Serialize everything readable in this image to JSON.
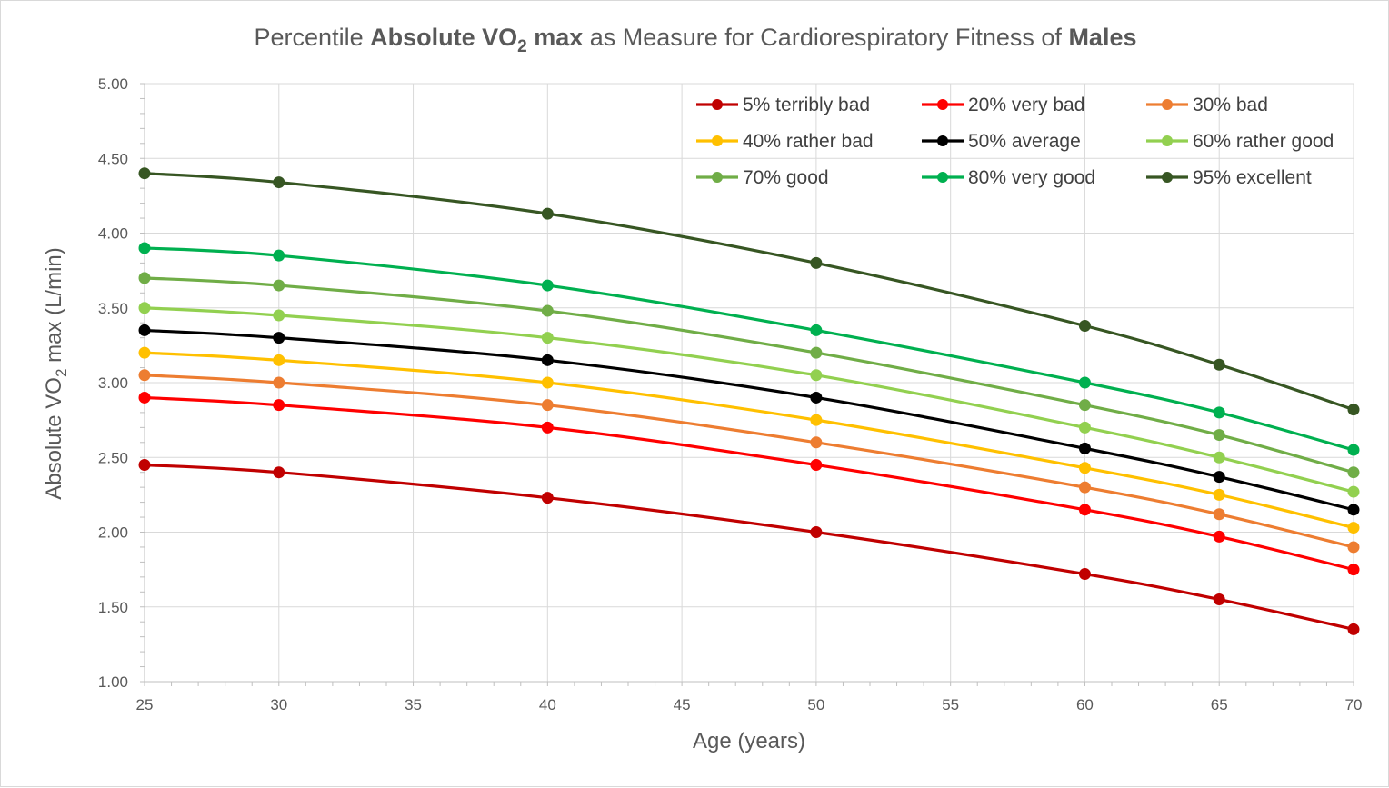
{
  "chart_data": {
    "type": "line",
    "title": {
      "parts": [
        {
          "text": "Percentile ",
          "bold": false,
          "sub": false
        },
        {
          "text": "Absolute VO",
          "bold": true,
          "sub": false
        },
        {
          "text": "2",
          "bold": true,
          "sub": true
        },
        {
          "text": " max",
          "bold": true,
          "sub": false
        },
        {
          "text": " as Measure for Cardiorespiratory Fitness of ",
          "bold": false,
          "sub": false
        },
        {
          "text": "Males",
          "bold": true,
          "sub": false
        }
      ]
    },
    "xlabel": "Age (years)",
    "ylabel": {
      "parts": [
        {
          "text": "Absolute VO",
          "sub": false
        },
        {
          "text": "2",
          "sub": true
        },
        {
          "text": " max (L/min)",
          "sub": false
        }
      ]
    },
    "xlim": [
      25,
      70
    ],
    "ylim": [
      1.0,
      5.0
    ],
    "x_ticks": [
      25,
      30,
      35,
      40,
      45,
      50,
      55,
      60,
      65,
      70
    ],
    "y_ticks": [
      "1.00",
      "1.50",
      "2.00",
      "2.50",
      "3.00",
      "3.50",
      "4.00",
      "4.50",
      "5.00"
    ],
    "grid": true,
    "legend_position": "top-right",
    "x": [
      25,
      30,
      40,
      50,
      60,
      65,
      70
    ],
    "series": [
      {
        "name": "5% terribly bad",
        "color": "#c00000",
        "values": [
          2.45,
          2.4,
          2.23,
          2.0,
          1.72,
          1.55,
          1.35
        ]
      },
      {
        "name": "20% very bad",
        "color": "#ff0000",
        "values": [
          2.9,
          2.85,
          2.7,
          2.45,
          2.15,
          1.97,
          1.75
        ]
      },
      {
        "name": "30% bad",
        "color": "#ed7d31",
        "values": [
          3.05,
          3.0,
          2.85,
          2.6,
          2.3,
          2.12,
          1.9
        ]
      },
      {
        "name": "40% rather bad",
        "color": "#ffc000",
        "values": [
          3.2,
          3.15,
          3.0,
          2.75,
          2.43,
          2.25,
          2.03
        ]
      },
      {
        "name": "50% average",
        "color": "#000000",
        "values": [
          3.35,
          3.3,
          3.15,
          2.9,
          2.56,
          2.37,
          2.15
        ]
      },
      {
        "name": "60% rather good",
        "color": "#92d050",
        "values": [
          3.5,
          3.45,
          3.3,
          3.05,
          2.7,
          2.5,
          2.27
        ]
      },
      {
        "name": "70% good",
        "color": "#70ad47",
        "values": [
          3.7,
          3.65,
          3.48,
          3.2,
          2.85,
          2.65,
          2.4
        ]
      },
      {
        "name": "80% very good",
        "color": "#00b050",
        "values": [
          3.9,
          3.85,
          3.65,
          3.35,
          3.0,
          2.8,
          2.55
        ]
      },
      {
        "name": "95% excellent",
        "color": "#375623",
        "values": [
          4.4,
          4.34,
          4.13,
          3.8,
          3.38,
          3.12,
          2.82
        ]
      }
    ]
  }
}
